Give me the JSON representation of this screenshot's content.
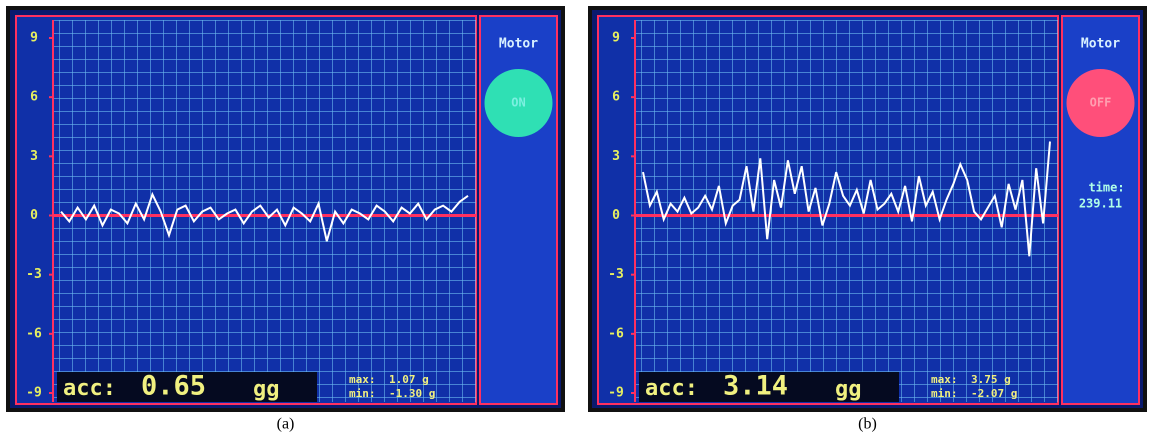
{
  "chart_data": [
    {
      "type": "line",
      "caption": "(a)",
      "panel_title": "Motor",
      "button_label": "ON",
      "button_color": "#2fe0b4",
      "button_text_color": "#7cf0e0",
      "readout_label": "acc:",
      "readout_value": "0.65",
      "readout_unit": "gg",
      "max_label": "max:",
      "max_value": "1.07 g",
      "min_label": "min:",
      "min_value": "-1.30 g",
      "ylim": [
        -9,
        9
      ],
      "yticks": [
        9,
        6,
        3,
        0,
        -3,
        -6,
        -9
      ],
      "color": "#ffffff",
      "values": [
        0.2,
        -0.3,
        0.4,
        -0.2,
        0.5,
        -0.5,
        0.3,
        0.1,
        -0.4,
        0.6,
        -0.2,
        1.07,
        0.2,
        -1.0,
        0.3,
        0.5,
        -0.3,
        0.2,
        0.4,
        -0.2,
        0.1,
        0.3,
        -0.4,
        0.2,
        0.5,
        -0.1,
        0.3,
        -0.5,
        0.4,
        0.1,
        -0.3,
        0.6,
        -1.3,
        0.2,
        -0.4,
        0.3,
        0.1,
        -0.2,
        0.5,
        0.2,
        -0.3,
        0.4,
        0.1,
        0.6,
        -0.2,
        0.3,
        0.5,
        0.2,
        0.7,
        1.0
      ]
    },
    {
      "type": "line",
      "caption": "(b)",
      "panel_title": "Motor",
      "button_label": "OFF",
      "button_color": "#ff4f7a",
      "button_text_color": "#ff9fb0",
      "time_label": "time:",
      "time_value": "239.11",
      "readout_label": "acc:",
      "readout_value": "3.14",
      "readout_unit": "gg",
      "max_label": "max:",
      "max_value": "3.75 g",
      "min_label": "min:",
      "min_value": "-2.07 g",
      "ylim": [
        -9,
        9
      ],
      "yticks": [
        9,
        6,
        3,
        0,
        -3,
        -6,
        -9
      ],
      "color": "#ffffff",
      "values": [
        2.2,
        0.5,
        1.2,
        -0.2,
        0.6,
        0.2,
        0.9,
        0.1,
        0.4,
        1.0,
        0.3,
        1.5,
        -0.4,
        0.5,
        0.8,
        2.5,
        0.2,
        2.9,
        -1.2,
        1.8,
        0.4,
        2.8,
        1.1,
        2.5,
        0.2,
        1.4,
        -0.5,
        0.6,
        2.2,
        1.0,
        0.5,
        1.3,
        0.1,
        1.8,
        0.3,
        0.6,
        1.1,
        0.2,
        1.5,
        -0.3,
        2.0,
        0.5,
        1.2,
        -0.2,
        0.8,
        1.6,
        2.6,
        1.8,
        0.2,
        -0.2,
        0.4,
        1.0,
        -0.6,
        1.6,
        0.3,
        1.8,
        -2.07,
        2.4,
        -0.4,
        3.75
      ]
    }
  ]
}
